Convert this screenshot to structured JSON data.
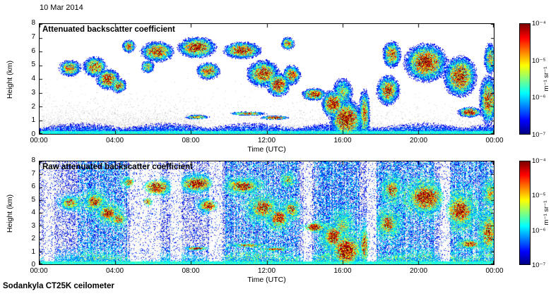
{
  "page": {
    "date_label": "10 Mar 2014",
    "footer": "Sodankyla CT25K ceilometer"
  },
  "chart_data": [
    {
      "type": "heatmap",
      "title": "Attenuated backscatter coefficient",
      "xlabel": "Time (UTC)",
      "ylabel": "Height (km)",
      "x_ticks": [
        "00:00",
        "04:00",
        "08:00",
        "12:00",
        "16:00",
        "20:00",
        "00:00"
      ],
      "y_ticks": [
        "0",
        "1",
        "2",
        "3",
        "4",
        "5",
        "6",
        "7",
        "8"
      ],
      "x_range_hours": [
        0,
        24
      ],
      "y_range_km": [
        0,
        8
      ],
      "colorscale": "jet",
      "value_scale": "log",
      "value_range_units": [
        "1e-7",
        "1e-4"
      ],
      "colorbar": {
        "unit_label": "m⁻¹ sr⁻¹",
        "tick_labels": [
          "10⁻⁴",
          "10⁻⁵",
          "10⁻⁶",
          "10⁻⁷"
        ]
      },
      "features": {
        "boundary_layer": {
          "top_km": 0.8,
          "intensity": 0.36
        },
        "blobs_format": [
          "hour",
          "km",
          "sigma_h",
          "sigma_km",
          "intensity"
        ],
        "blobs": [
          [
            1.6,
            4.8,
            0.5,
            0.5,
            0.8
          ],
          [
            2.9,
            4.9,
            0.5,
            0.6,
            0.9
          ],
          [
            3.6,
            4.0,
            0.5,
            0.6,
            0.95
          ],
          [
            4.15,
            3.55,
            0.35,
            0.45,
            0.85
          ],
          [
            4.7,
            6.4,
            0.3,
            0.4,
            0.8
          ],
          [
            6.2,
            6.0,
            0.7,
            0.6,
            0.95
          ],
          [
            5.7,
            4.9,
            0.3,
            0.4,
            0.7
          ],
          [
            8.3,
            6.3,
            0.8,
            0.6,
            1.0
          ],
          [
            8.9,
            4.6,
            0.5,
            0.5,
            0.9
          ],
          [
            10.7,
            6.1,
            0.8,
            0.5,
            0.95
          ],
          [
            11.8,
            4.4,
            0.7,
            0.8,
            0.9
          ],
          [
            12.6,
            3.6,
            0.5,
            0.7,
            0.95
          ],
          [
            13.3,
            4.3,
            0.4,
            0.6,
            0.85
          ],
          [
            13.1,
            6.6,
            0.3,
            0.4,
            0.8
          ],
          [
            8.3,
            1.25,
            0.5,
            0.12,
            1.0
          ],
          [
            11.0,
            1.5,
            0.8,
            0.12,
            0.85
          ],
          [
            12.4,
            1.2,
            0.6,
            0.12,
            1.0
          ],
          [
            14.5,
            2.9,
            0.5,
            0.35,
            1.05
          ],
          [
            15.5,
            2.2,
            0.5,
            0.8,
            1.0
          ],
          [
            16.2,
            1.1,
            0.7,
            1.1,
            1.05
          ],
          [
            16.0,
            3.0,
            0.5,
            1.0,
            0.6
          ],
          [
            17.15,
            1.5,
            0.25,
            1.5,
            0.8
          ],
          [
            18.4,
            3.2,
            0.5,
            0.9,
            0.85
          ],
          [
            18.6,
            5.8,
            0.4,
            0.8,
            0.85
          ],
          [
            20.4,
            5.2,
            0.9,
            1.1,
            1.0
          ],
          [
            22.2,
            4.2,
            0.7,
            1.2,
            0.95
          ],
          [
            22.7,
            1.6,
            0.5,
            0.3,
            1.0
          ],
          [
            23.7,
            2.5,
            0.4,
            1.5,
            0.85
          ],
          [
            23.8,
            5.5,
            0.3,
            1.0,
            0.7
          ]
        ]
      }
    },
    {
      "type": "heatmap",
      "title": "Raw attenuated backscatter coefficient",
      "xlabel": "Time (UTC)",
      "ylabel": "Height (km)",
      "x_ticks": [
        "00:00",
        "04:00",
        "08:00",
        "12:00",
        "16:00",
        "20:00",
        "00:00"
      ],
      "y_ticks": [
        "0",
        "1",
        "2",
        "3",
        "4",
        "5",
        "6",
        "7",
        "8"
      ],
      "x_range_hours": [
        0,
        24
      ],
      "y_range_km": [
        0,
        8
      ],
      "colorscale": "jet",
      "value_scale": "log",
      "value_range_units": [
        "1e-7",
        "1e-4"
      ],
      "colorbar": {
        "unit_label": "m⁻¹ sr⁻¹",
        "tick_labels": [
          "10⁻⁴",
          "10⁻⁵",
          "10⁻⁶",
          "10⁻⁷"
        ]
      },
      "features": {
        "noise": "dense blue background speckle (raw signal)",
        "uses_same_cloud_blobs_as_panel_0": true,
        "white_gap_hours": [
          [
            0.2,
            0.75
          ],
          [
            4.75,
            6.35
          ],
          [
            6.9,
            7.5
          ],
          [
            8.95,
            9.65
          ],
          [
            13.95,
            14.4
          ],
          [
            17.25,
            17.8
          ],
          [
            21.2,
            21.65
          ]
        ],
        "dense_noise_hours": [
          [
            2.0,
            4.6
          ],
          [
            9.8,
            13.7
          ],
          [
            14.5,
            16.9
          ],
          [
            17.8,
            20.9
          ],
          [
            21.7,
            23.95
          ]
        ]
      }
    }
  ]
}
